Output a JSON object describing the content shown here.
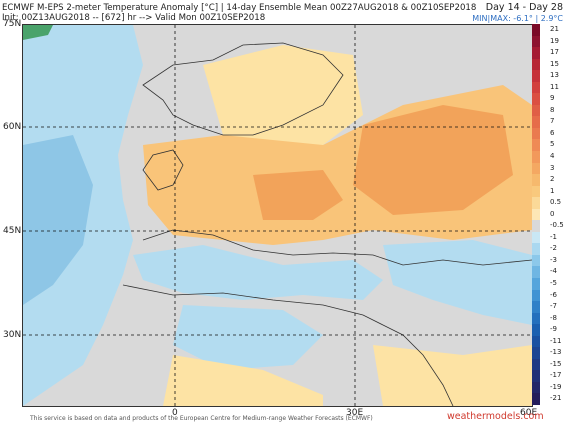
{
  "header": {
    "title_line": "ECMWF M-EPS 2-meter Temperature Anomaly [°C] | 14-day Ensemble Mean 00Z27AUG2018 & 00Z10SEP2018",
    "init_line": "Init: 00Z13AUG2018 -- [672] hr --> Valid Mon 00Z10SEP2018",
    "day_range": "Day 14 - Day 28",
    "minmax_label": "MIN|MAX: -6.1° | 2.9°C"
  },
  "map": {
    "lat_labels": [
      "75N",
      "60N",
      "45N",
      "30N"
    ],
    "lon_labels": [
      "0",
      "30E",
      "60E"
    ],
    "anomaly_description_colors": {
      "land_neutral": "#d9d9d9",
      "warm_light": "#fde3a4",
      "warm_mid": "#f9c479",
      "warm_strong": "#f2a35a",
      "cool_light": "#b3dcf0",
      "cool_mid": "#8ec6e6"
    }
  },
  "colorbar": {
    "levels": [
      {
        "label": "21",
        "color": "#7a0a28"
      },
      {
        "label": "19",
        "color": "#8d1230"
      },
      {
        "label": "17",
        "color": "#a51a33"
      },
      {
        "label": "15",
        "color": "#b72535"
      },
      {
        "label": "13",
        "color": "#c6323a"
      },
      {
        "label": "11",
        "color": "#d2403e"
      },
      {
        "label": "9",
        "color": "#db4f42"
      },
      {
        "label": "8",
        "color": "#e05e46"
      },
      {
        "label": "7",
        "color": "#e66c4a"
      },
      {
        "label": "6",
        "color": "#ea7a4f"
      },
      {
        "label": "5",
        "color": "#ef8a55"
      },
      {
        "label": "4",
        "color": "#f2995b"
      },
      {
        "label": "3",
        "color": "#f4a862"
      },
      {
        "label": "2",
        "color": "#f6b96d"
      },
      {
        "label": "1",
        "color": "#f9c97d"
      },
      {
        "label": "0.5",
        "color": "#fbd998"
      },
      {
        "label": "0",
        "color": "#fde7b6"
      },
      {
        "label": "-0.5",
        "color": "#d9d9d9"
      },
      {
        "label": "-1",
        "color": "#c9e7f5"
      },
      {
        "label": "-2",
        "color": "#aad8f0"
      },
      {
        "label": "-3",
        "color": "#8cc8ea"
      },
      {
        "label": "-4",
        "color": "#6fb6e3"
      },
      {
        "label": "-5",
        "color": "#55a5dc"
      },
      {
        "label": "-6",
        "color": "#4093d3"
      },
      {
        "label": "-7",
        "color": "#3081c8"
      },
      {
        "label": "-8",
        "color": "#2470bd"
      },
      {
        "label": "-9",
        "color": "#1b60b0"
      },
      {
        "label": "-11",
        "color": "#1a51a1"
      },
      {
        "label": "-13",
        "color": "#1c4592"
      },
      {
        "label": "-15",
        "color": "#1e3a84"
      },
      {
        "label": "-17",
        "color": "#212f76"
      },
      {
        "label": "-19",
        "color": "#232668"
      },
      {
        "label": "-21",
        "color": "#241d5a"
      }
    ]
  },
  "footer": {
    "disclaimer": "This service is based on data and products of the European Centre for Medium-range Weather Forecasts (ECMWF)",
    "brand": "weathermodels.com"
  }
}
